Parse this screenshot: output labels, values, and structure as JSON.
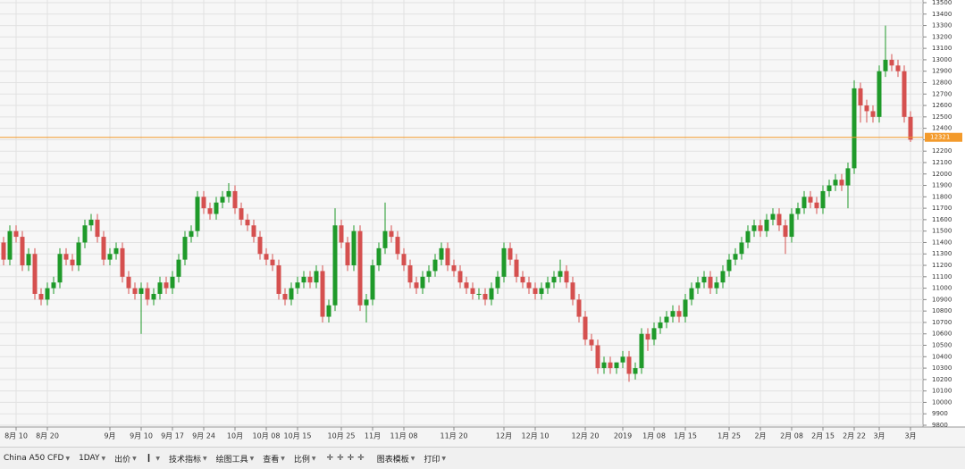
{
  "chart_data": {
    "type": "candlestick",
    "categories": [
      null,
      null,
      "8月 10",
      null,
      null,
      null,
      null,
      "8月 20",
      null,
      null,
      null,
      null,
      null,
      null,
      null,
      null,
      null,
      "9月",
      null,
      null,
      null,
      null,
      "9月 10",
      null,
      null,
      null,
      null,
      "9月 17",
      null,
      null,
      null,
      null,
      "9月 24",
      null,
      null,
      null,
      null,
      "10月",
      null,
      null,
      null,
      null,
      "10月 08",
      null,
      null,
      null,
      null,
      "10月 15",
      null,
      null,
      null,
      null,
      null,
      null,
      "10月 25",
      null,
      null,
      null,
      null,
      "11月",
      null,
      null,
      null,
      null,
      "11月 08",
      null,
      null,
      null,
      null,
      null,
      null,
      null,
      "11月 20",
      null,
      null,
      null,
      null,
      null,
      null,
      null,
      "12月",
      null,
      null,
      null,
      null,
      "12月 10",
      null,
      null,
      null,
      null,
      null,
      null,
      null,
      "12月 20",
      null,
      null,
      null,
      null,
      null,
      "2019",
      null,
      null,
      null,
      null,
      "1月 08",
      null,
      null,
      null,
      null,
      "1月 15",
      null,
      null,
      null,
      null,
      null,
      null,
      "1月 25",
      null,
      null,
      null,
      null,
      "2月",
      null,
      null,
      null,
      null,
      "2月 08",
      null,
      null,
      null,
      null,
      "2月 15",
      null,
      null,
      null,
      null,
      "2月 22",
      null,
      null,
      null,
      "3月",
      null,
      null,
      null,
      null,
      "3月"
    ],
    "open": [
      11400,
      11250,
      11500,
      11450,
      11200,
      11300,
      10950,
      10900,
      11000,
      11050,
      11300,
      11250,
      11200,
      11400,
      11550,
      11600,
      11450,
      11250,
      11300,
      11350,
      11100,
      11000,
      10950,
      11000,
      10900,
      10950,
      11050,
      11000,
      11100,
      11250,
      11450,
      11500,
      11800,
      11700,
      11650,
      11750,
      11800,
      11850,
      11700,
      11600,
      11550,
      11450,
      11300,
      11250,
      11200,
      10950,
      10900,
      11000,
      11050,
      11100,
      11050,
      11150,
      10750,
      10850,
      11550,
      11400,
      11200,
      11500,
      10850,
      10900,
      11200,
      11350,
      11500,
      11450,
      11300,
      11200,
      11050,
      11000,
      11100,
      11150,
      11250,
      11350,
      11200,
      11150,
      11050,
      11000,
      10950,
      10950,
      10900,
      11000,
      11100,
      11350,
      11250,
      11100,
      11050,
      11000,
      10950,
      11000,
      11050,
      11100,
      11150,
      11050,
      10900,
      10750,
      10550,
      10500,
      10300,
      10350,
      10300,
      10350,
      10400,
      10250,
      10300,
      10600,
      10550,
      10650,
      10700,
      10750,
      10800,
      10750,
      10900,
      11000,
      11050,
      11100,
      11000,
      11050,
      11150,
      11250,
      11300,
      11400,
      11500,
      11550,
      11500,
      11600,
      11650,
      11550,
      11450,
      11650,
      11700,
      11800,
      11750,
      11700,
      11850,
      11900,
      11950,
      11900,
      12050,
      12750,
      12600,
      12550,
      12500,
      12900,
      13000,
      12950,
      12900,
      12500
    ],
    "high": [
      11450,
      11550,
      11550,
      11500,
      11350,
      11350,
      11000,
      11050,
      11100,
      11350,
      11350,
      11300,
      11450,
      11600,
      11650,
      11650,
      11500,
      11350,
      11400,
      11400,
      11150,
      11050,
      11050,
      11050,
      11000,
      11100,
      11100,
      11150,
      11300,
      11500,
      11550,
      11850,
      11850,
      11750,
      11800,
      11850,
      11920,
      11900,
      11750,
      11650,
      11600,
      11500,
      11350,
      11300,
      11250,
      11000,
      11050,
      11100,
      11150,
      11150,
      11200,
      11200,
      10900,
      11700,
      11600,
      11450,
      11550,
      11550,
      10950,
      11250,
      11400,
      11750,
      11550,
      11500,
      11350,
      11250,
      11100,
      11150,
      11200,
      11300,
      11400,
      11400,
      11250,
      11200,
      11100,
      11050,
      11000,
      11000,
      11050,
      11150,
      11400,
      11400,
      11300,
      11150,
      11100,
      11050,
      11050,
      11100,
      11150,
      11250,
      11200,
      11100,
      10950,
      10800,
      10600,
      10550,
      10400,
      10400,
      10350,
      10450,
      10450,
      10350,
      10650,
      10650,
      10700,
      10750,
      10800,
      10850,
      10850,
      10950,
      11050,
      11100,
      11150,
      11150,
      11100,
      11200,
      11300,
      11350,
      11450,
      11550,
      11600,
      11600,
      11650,
      11700,
      11700,
      11600,
      11700,
      11750,
      11850,
      11850,
      11800,
      11900,
      11950,
      12000,
      12000,
      12100,
      12820,
      12800,
      12650,
      12600,
      12950,
      13300,
      13050,
      13000,
      12950,
      12550
    ],
    "low": [
      11200,
      11200,
      11400,
      11150,
      11150,
      10900,
      10850,
      10850,
      10950,
      11000,
      11200,
      11150,
      11150,
      11350,
      11500,
      11400,
      11200,
      11200,
      11250,
      11050,
      10950,
      10900,
      10600,
      10850,
      10850,
      10900,
      10950,
      10950,
      11050,
      11200,
      11400,
      11450,
      11650,
      11600,
      11600,
      11700,
      11750,
      11650,
      11550,
      11500,
      11400,
      11250,
      11200,
      11150,
      10900,
      10850,
      10850,
      10950,
      11000,
      11000,
      11000,
      10700,
      10700,
      10800,
      11350,
      11150,
      11150,
      10800,
      10700,
      10850,
      11150,
      11300,
      11400,
      11250,
      11150,
      11000,
      10950,
      10950,
      11050,
      11100,
      11200,
      11150,
      11100,
      11000,
      10950,
      10900,
      10900,
      10850,
      10850,
      10950,
      11050,
      11200,
      11050,
      11000,
      10950,
      10900,
      10900,
      10950,
      11000,
      11050,
      11000,
      10850,
      10700,
      10500,
      10450,
      10250,
      10250,
      10250,
      10250,
      10300,
      10180,
      10200,
      10250,
      10450,
      10500,
      10600,
      10650,
      10700,
      10700,
      10700,
      10850,
      10950,
      11000,
      10950,
      10950,
      11000,
      11100,
      11200,
      11250,
      11350,
      11450,
      11450,
      11450,
      11550,
      11500,
      11300,
      11400,
      11600,
      11650,
      11700,
      11650,
      11650,
      11800,
      11850,
      11850,
      11700,
      12000,
      12450,
      12450,
      12450,
      12450,
      12850,
      12900,
      12850,
      12450,
      12280
    ],
    "close": [
      11250,
      11500,
      11450,
      11200,
      11300,
      10950,
      10900,
      11000,
      11050,
      11300,
      11250,
      11200,
      11400,
      11550,
      11600,
      11450,
      11250,
      11300,
      11350,
      11100,
      11000,
      10950,
      11000,
      10900,
      10950,
      11050,
      11000,
      11100,
      11250,
      11450,
      11500,
      11800,
      11700,
      11650,
      11750,
      11800,
      11850,
      11700,
      11600,
      11550,
      11450,
      11300,
      11250,
      11200,
      10950,
      10900,
      11000,
      11050,
      11100,
      11050,
      11150,
      10750,
      10850,
      11550,
      11400,
      11200,
      11500,
      10850,
      10900,
      11200,
      11350,
      11500,
      11450,
      11300,
      11200,
      11050,
      11000,
      11100,
      11150,
      11250,
      11350,
      11200,
      11150,
      11050,
      11000,
      10950,
      10950,
      10900,
      11000,
      11100,
      11350,
      11250,
      11100,
      11050,
      11000,
      10950,
      11000,
      11050,
      11100,
      11150,
      11050,
      10900,
      10750,
      10550,
      10500,
      10300,
      10350,
      10300,
      10350,
      10400,
      10250,
      10300,
      10600,
      10550,
      10650,
      10700,
      10750,
      10800,
      10750,
      10900,
      11000,
      11050,
      11100,
      11000,
      11050,
      11150,
      11250,
      11300,
      11400,
      11500,
      11550,
      11500,
      11600,
      11650,
      11550,
      11450,
      11650,
      11700,
      11800,
      11750,
      11700,
      11850,
      11900,
      11950,
      11900,
      12050,
      12750,
      12600,
      12550,
      12500,
      12900,
      13000,
      12950,
      12900,
      12500,
      12300
    ],
    "up_color": "#1f9a2a",
    "down_color": "#d5504f",
    "ylim": [
      9800,
      13500
    ],
    "yticks": [
      9800,
      9900,
      10000,
      10100,
      10200,
      10300,
      10400,
      10500,
      10600,
      10700,
      10800,
      10900,
      11000,
      11100,
      11200,
      11300,
      11400,
      11500,
      11600,
      11700,
      11800,
      11900,
      12000,
      12100,
      12200,
      12300,
      12400,
      12500,
      12600,
      12700,
      12800,
      12900,
      13000,
      13100,
      13200,
      13300,
      13400,
      13500
    ],
    "grid": true,
    "current_price": 12321,
    "current_price_color": "#f39a2b"
  },
  "toolbar": {
    "items": [
      "China A50 CFD",
      "1DAY",
      "出价",
      "技术指标",
      "绘图工具",
      "查看",
      "比例",
      "图表模板",
      "打印"
    ]
  }
}
